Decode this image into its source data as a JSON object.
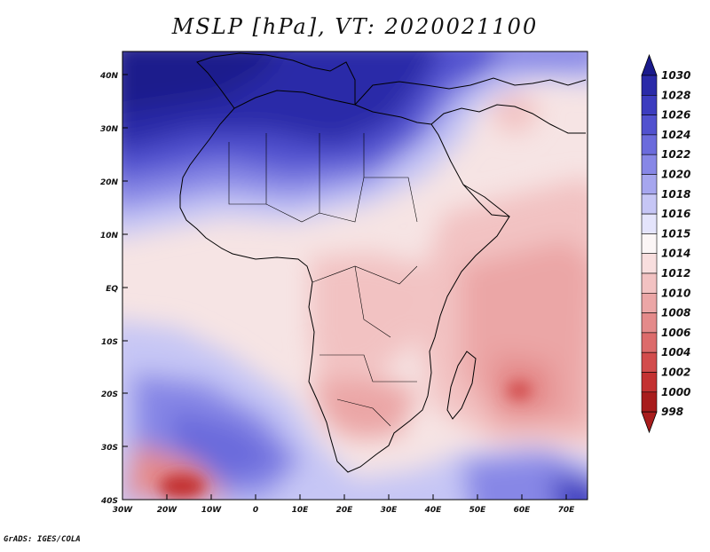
{
  "title": "MSLP [hPa], VT: 2020021100",
  "credit": "GrADS: IGES/COLA",
  "map": {
    "region": "Africa and surrounding oceans",
    "lon_range": [
      -30,
      75
    ],
    "lat_range": [
      -40,
      45
    ],
    "lon_ticks": [
      "30W",
      "20W",
      "10W",
      "0",
      "10E",
      "20E",
      "30E",
      "40E",
      "50E",
      "60E",
      "70E"
    ],
    "lat_ticks": [
      "40N",
      "30N",
      "20N",
      "10N",
      "EQ",
      "10S",
      "20S",
      "30S",
      "40S"
    ]
  },
  "colorbar": {
    "levels": [
      "1030",
      "1028",
      "1026",
      "1024",
      "1022",
      "1020",
      "1018",
      "1016",
      "1015",
      "1014",
      "1012",
      "1010",
      "1008",
      "1006",
      "1004",
      "1002",
      "1000",
      "998"
    ],
    "colors": [
      "#1a1a8c",
      "#2a2aa8",
      "#3c3cbf",
      "#5151cf",
      "#6b6bdc",
      "#8787e6",
      "#a6a6ee",
      "#c6c6f5",
      "#e4e4fb",
      "#fbf6f6",
      "#f8dede",
      "#f2c2c2",
      "#eba6a6",
      "#e48a8a",
      "#dc6b6b",
      "#d24c4c",
      "#c33131",
      "#a81c1c"
    ]
  }
}
